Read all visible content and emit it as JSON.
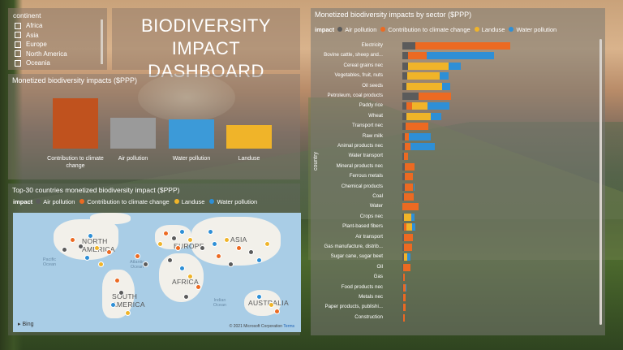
{
  "slicer": {
    "title": "continent",
    "options": [
      "Africa",
      "Asia",
      "Europe",
      "North America",
      "Oceania"
    ]
  },
  "title": {
    "line1": "BIODIVERSITY",
    "line2": "IMPACT DASHBOARD"
  },
  "summary": {
    "title": "Monetized biodiversity impacts ($PPP)",
    "bars": [
      {
        "label": "Contribution to climate change",
        "value": 1.0,
        "color": "#c0521e"
      },
      {
        "label": "Air pollution",
        "value": 0.62,
        "color": "#9a9a9a"
      },
      {
        "label": "Water pollution",
        "value": 0.58,
        "color": "#3c9ad8"
      },
      {
        "label": "Landuse",
        "value": 0.47,
        "color": "#f0b429"
      }
    ]
  },
  "map": {
    "title": "Top-30 countries monetized biodiversity impact ($PPP)",
    "legend_label": "impact",
    "legend": [
      {
        "name": "Air pollution",
        "color": "#5b5b5b"
      },
      {
        "name": "Contribution to climate change",
        "color": "#ec6a22"
      },
      {
        "name": "Landuse",
        "color": "#f0b429"
      },
      {
        "name": "Water pollution",
        "color": "#2e8fd6"
      }
    ],
    "labels": {
      "north_america": "NORTH AMERICA",
      "south_america": "SOUTH AMERICA",
      "europe": "EUROPE",
      "africa": "AFRICA",
      "asia": "ASIA",
      "australia": "AUSTRALIA",
      "pacific": "Pacific Ocean",
      "atlantic": "Atlantic Ocean",
      "indian": "Indian Ocean"
    },
    "bing": "Bing",
    "copyright": "© 2021 Microsoft Corporation",
    "terms": "Terms"
  },
  "sector": {
    "title": "Monetized biodiversity impacts by sector ($PPP)",
    "legend_label": "impact",
    "axis_label": "country",
    "legend": [
      {
        "name": "Air pollution",
        "color": "#5b5b5b"
      },
      {
        "name": "Contribution to climate change",
        "color": "#ec6a22"
      },
      {
        "name": "Landuse",
        "color": "#f0b429"
      },
      {
        "name": "Water pollution",
        "color": "#2e8fd6"
      }
    ],
    "rows": [
      {
        "label": "Electricity",
        "air": 18,
        "climate": 130,
        "land": 0,
        "water": 0
      },
      {
        "label": "Bovine cattle, sheep and...",
        "air": 8,
        "climate": 25,
        "land": 0,
        "water": 93
      },
      {
        "label": "Cereal grains nec",
        "air": 8,
        "climate": 0,
        "land": 55,
        "water": 17
      },
      {
        "label": "Vegetables, fruit, nuts",
        "air": 7,
        "climate": 0,
        "land": 44,
        "water": 12
      },
      {
        "label": "Oil seeds",
        "air": 6,
        "climate": 0,
        "land": 48,
        "water": 12
      },
      {
        "label": "Petroleum, coal products",
        "air": 22,
        "climate": 45,
        "land": 0,
        "water": 0
      },
      {
        "label": "Paddy rice",
        "air": 5,
        "climate": 8,
        "land": 21,
        "water": 30
      },
      {
        "label": "Wheat",
        "air": 5,
        "climate": 0,
        "land": 34,
        "water": 14
      },
      {
        "label": "Transport nec",
        "air": 4,
        "climate": 32,
        "land": 0,
        "water": 0
      },
      {
        "label": "Raw milk",
        "air": 3,
        "climate": 6,
        "land": 0,
        "water": 30
      },
      {
        "label": "Animal products nec",
        "air": 3,
        "climate": 8,
        "land": 0,
        "water": 33
      },
      {
        "label": "Water transport",
        "air": 2,
        "climate": 6,
        "land": 0,
        "water": 0
      },
      {
        "label": "Mineral products nec",
        "air": 3,
        "climate": 14,
        "land": 0,
        "water": 0
      },
      {
        "label": "Ferrous metals",
        "air": 3,
        "climate": 12,
        "land": 0,
        "water": 0
      },
      {
        "label": "Chemical products",
        "air": 3,
        "climate": 12,
        "land": 0,
        "water": 2
      },
      {
        "label": "Coal",
        "air": 2,
        "climate": 14,
        "land": 0,
        "water": 0
      },
      {
        "label": "Water",
        "air": 0,
        "climate": 0,
        "land": 0,
        "water": 0
      },
      {
        "label": "Crops nec",
        "air": 2,
        "climate": 0,
        "land": 10,
        "water": 5
      },
      {
        "label": "Plant-based fibers",
        "air": 2,
        "climate": 4,
        "land": 7,
        "water": 5
      },
      {
        "label": "Air transport",
        "air": 2,
        "climate": 12,
        "land": 0,
        "water": 0
      },
      {
        "label": "Gas manufacture, distrib...",
        "air": 2,
        "climate": 11,
        "land": 0,
        "water": 0
      },
      {
        "label": "Sugar cane, sugar beet",
        "air": 2,
        "climate": 0,
        "land": 5,
        "water": 4
      },
      {
        "label": "Oil",
        "air": 1,
        "climate": 10,
        "land": 0,
        "water": 0
      },
      {
        "label": "Gas",
        "air": 1,
        "climate": 2,
        "land": 0,
        "water": 0
      },
      {
        "label": "Food products nec",
        "air": 1,
        "climate": 3,
        "land": 0,
        "water": 2
      },
      {
        "label": "Metals nec",
        "air": 1,
        "climate": 3,
        "land": 0,
        "water": 0
      },
      {
        "label": "Paper products, publishi...",
        "air": 1,
        "climate": 3,
        "land": 0,
        "water": 0
      },
      {
        "label": "Construction",
        "air": 1,
        "climate": 2,
        "land": 0,
        "water": 0
      }
    ]
  }
}
